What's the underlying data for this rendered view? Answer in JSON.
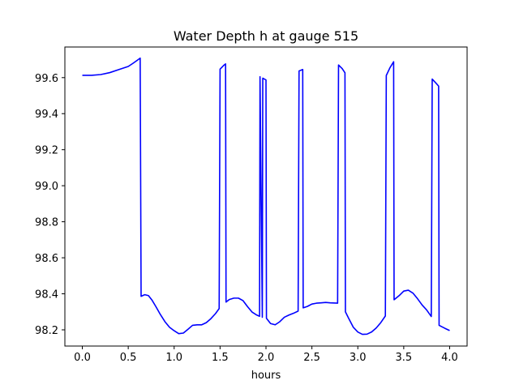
{
  "chart_data": {
    "type": "line",
    "title": "Water Depth h at gauge 515",
    "xlabel": "hours",
    "ylabel": "",
    "xlim": [
      -0.19,
      4.19
    ],
    "ylim": [
      98.11,
      99.77
    ],
    "grid": false,
    "legend": "none",
    "x_ticks": [
      0.0,
      0.5,
      1.0,
      1.5,
      2.0,
      2.5,
      3.0,
      3.5,
      4.0
    ],
    "x_tick_labels": [
      "0.0",
      "0.5",
      "1.0",
      "1.5",
      "2.0",
      "2.5",
      "3.0",
      "3.5",
      "4.0"
    ],
    "y_ticks": [
      98.2,
      98.4,
      98.6,
      98.8,
      99.0,
      99.2,
      99.4,
      99.6
    ],
    "y_tick_labels": [
      "98.2",
      "98.4",
      "98.6",
      "98.8",
      "99.0",
      "99.2",
      "99.4",
      "99.6"
    ],
    "series": [
      {
        "name": "",
        "color": "#0000ff",
        "points": [
          [
            0.0,
            99.613
          ],
          [
            0.1,
            99.613
          ],
          [
            0.2,
            99.617
          ],
          [
            0.3,
            99.628
          ],
          [
            0.4,
            99.645
          ],
          [
            0.5,
            99.662
          ],
          [
            0.55,
            99.679
          ],
          [
            0.6,
            99.697
          ],
          [
            0.63,
            99.708
          ],
          [
            0.64,
            98.386
          ],
          [
            0.68,
            98.395
          ],
          [
            0.72,
            98.39
          ],
          [
            0.76,
            98.364
          ],
          [
            0.8,
            98.33
          ],
          [
            0.85,
            98.285
          ],
          [
            0.9,
            98.245
          ],
          [
            0.95,
            98.214
          ],
          [
            1.0,
            98.195
          ],
          [
            1.05,
            98.179
          ],
          [
            1.1,
            98.182
          ],
          [
            1.15,
            98.203
          ],
          [
            1.2,
            98.225
          ],
          [
            1.25,
            98.228
          ],
          [
            1.3,
            98.228
          ],
          [
            1.35,
            98.24
          ],
          [
            1.4,
            98.262
          ],
          [
            1.45,
            98.29
          ],
          [
            1.49,
            98.318
          ],
          [
            1.5,
            99.647
          ],
          [
            1.54,
            99.668
          ],
          [
            1.56,
            99.676
          ],
          [
            1.565,
            98.354
          ],
          [
            1.6,
            98.368
          ],
          [
            1.65,
            98.376
          ],
          [
            1.7,
            98.376
          ],
          [
            1.75,
            98.362
          ],
          [
            1.8,
            98.328
          ],
          [
            1.85,
            98.298
          ],
          [
            1.9,
            98.282
          ],
          [
            1.93,
            98.275
          ],
          [
            1.935,
            99.605
          ],
          [
            1.96,
            98.27
          ],
          [
            1.965,
            99.597
          ],
          [
            2.0,
            99.587
          ],
          [
            2.005,
            98.264
          ],
          [
            2.05,
            98.235
          ],
          [
            2.1,
            98.228
          ],
          [
            2.15,
            98.245
          ],
          [
            2.2,
            98.27
          ],
          [
            2.25,
            98.282
          ],
          [
            2.3,
            98.292
          ],
          [
            2.35,
            98.304
          ],
          [
            2.36,
            99.637
          ],
          [
            2.4,
            99.645
          ],
          [
            2.405,
            98.322
          ],
          [
            2.45,
            98.33
          ],
          [
            2.5,
            98.343
          ],
          [
            2.55,
            98.348
          ],
          [
            2.6,
            98.35
          ],
          [
            2.65,
            98.352
          ],
          [
            2.7,
            98.35
          ],
          [
            2.78,
            98.348
          ],
          [
            2.79,
            99.67
          ],
          [
            2.83,
            99.65
          ],
          [
            2.86,
            99.627
          ],
          [
            2.865,
            98.3
          ],
          [
            2.9,
            98.264
          ],
          [
            2.95,
            98.215
          ],
          [
            3.0,
            98.188
          ],
          [
            3.05,
            98.175
          ],
          [
            3.1,
            98.176
          ],
          [
            3.15,
            98.188
          ],
          [
            3.2,
            98.21
          ],
          [
            3.25,
            98.24
          ],
          [
            3.3,
            98.277
          ],
          [
            3.31,
            99.612
          ],
          [
            3.35,
            99.655
          ],
          [
            3.39,
            99.688
          ],
          [
            3.395,
            98.367
          ],
          [
            3.45,
            98.39
          ],
          [
            3.5,
            98.415
          ],
          [
            3.55,
            98.42
          ],
          [
            3.6,
            98.404
          ],
          [
            3.65,
            98.373
          ],
          [
            3.7,
            98.338
          ],
          [
            3.75,
            98.31
          ],
          [
            3.8,
            98.274
          ],
          [
            3.81,
            99.592
          ],
          [
            3.85,
            99.57
          ],
          [
            3.88,
            99.553
          ],
          [
            3.885,
            98.225
          ],
          [
            3.95,
            98.208
          ],
          [
            4.0,
            98.196
          ]
        ]
      }
    ]
  }
}
